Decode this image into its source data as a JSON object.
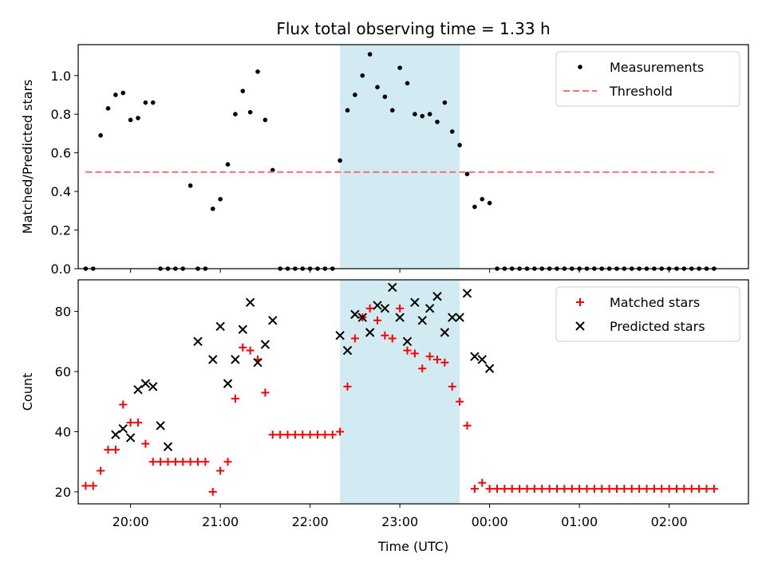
{
  "chart_data": [
    {
      "type": "scatter",
      "title": "Flux total observing time = 1.33 h",
      "xlabel": "",
      "ylabel": "Matched/Predicted stars",
      "xlim": [
        "19:25",
        "02:53"
      ],
      "ylim": [
        0,
        1.16
      ],
      "yticks": [
        "0.0",
        "0.2",
        "0.4",
        "0.6",
        "0.8",
        "1.0"
      ],
      "highlight_span": {
        "start": "22:20",
        "end": "23:40",
        "color": "#add8e6"
      },
      "legend": {
        "placement": "top-right",
        "entries": [
          "Measurements",
          "Threshold"
        ]
      },
      "series": [
        {
          "name": "Measurements",
          "style": "dot",
          "color": "#000000",
          "x": [
            "19:30",
            "19:35",
            "19:40",
            "19:45",
            "19:50",
            "19:55",
            "20:00",
            "20:05",
            "20:10",
            "20:15",
            "20:20",
            "20:25",
            "20:30",
            "20:35",
            "20:40",
            "20:45",
            "20:50",
            "20:55",
            "21:00",
            "21:05",
            "21:10",
            "21:15",
            "21:20",
            "21:25",
            "21:30",
            "21:35",
            "21:40",
            "21:45",
            "21:50",
            "21:55",
            "22:00",
            "22:05",
            "22:10",
            "22:15",
            "22:20",
            "22:25",
            "22:30",
            "22:35",
            "22:40",
            "22:45",
            "22:50",
            "22:55",
            "23:00",
            "23:05",
            "23:10",
            "23:15",
            "23:20",
            "23:25",
            "23:30",
            "23:35",
            "23:40",
            "23:45",
            "23:50",
            "23:55",
            "00:00",
            "00:05",
            "00:10",
            "00:15",
            "00:20",
            "00:25",
            "00:30",
            "00:35",
            "00:40",
            "00:45",
            "00:50",
            "00:55",
            "01:00",
            "01:05",
            "01:10",
            "01:15",
            "01:20",
            "01:25",
            "01:30",
            "01:35",
            "01:40",
            "01:45",
            "01:50",
            "01:55",
            "02:00",
            "02:05",
            "02:10",
            "02:15",
            "02:20",
            "02:25",
            "02:30"
          ],
          "y": [
            0,
            0,
            0.69,
            0.83,
            0.9,
            0.91,
            0.77,
            0.78,
            0.86,
            0.86,
            0,
            0,
            0,
            0,
            0.43,
            0,
            0,
            0.31,
            0.36,
            0.54,
            0.8,
            0.92,
            0.81,
            1.02,
            0.77,
            0.51,
            0,
            0,
            0,
            0,
            0,
            0,
            0,
            0,
            0.56,
            0.82,
            0.9,
            1.0,
            1.11,
            0.94,
            0.89,
            0.82,
            1.04,
            0.96,
            0.8,
            0.79,
            0.8,
            0.76,
            0.86,
            0.71,
            0.64,
            0.49,
            0.32,
            0.36,
            0.34,
            0,
            0,
            0,
            0,
            0,
            0,
            0,
            0,
            0,
            0,
            0,
            0,
            0,
            0,
            0,
            0,
            0,
            0,
            0,
            0,
            0,
            0,
            0,
            0,
            0,
            0,
            0,
            0,
            0,
            0
          ]
        },
        {
          "name": "Threshold",
          "style": "dashed-line",
          "color": "#ff6e6e",
          "x": [
            "19:30",
            "02:30"
          ],
          "y": [
            0.5,
            0.5
          ]
        }
      ]
    },
    {
      "type": "scatter",
      "title": "",
      "xlabel": "Time (UTC)",
      "ylabel": "Count",
      "xlim": [
        "19:25",
        "02:53"
      ],
      "ylim": [
        16,
        90.5
      ],
      "xticks": [
        "20:00",
        "21:00",
        "22:00",
        "23:00",
        "00:00",
        "01:00",
        "02:00"
      ],
      "yticks": [
        "20",
        "40",
        "60",
        "80"
      ],
      "highlight_span": {
        "start": "22:20",
        "end": "23:40",
        "color": "#add8e6"
      },
      "legend": {
        "placement": "top-right",
        "entries": [
          "Matched stars",
          "Predicted stars"
        ]
      },
      "series": [
        {
          "name": "Matched stars",
          "marker": "plus",
          "color": "#ff0000",
          "x": [
            "19:30",
            "19:35",
            "19:40",
            "19:45",
            "19:50",
            "19:55",
            "20:00",
            "20:05",
            "20:10",
            "20:15",
            "20:20",
            "20:25",
            "20:30",
            "20:35",
            "20:40",
            "20:45",
            "20:50",
            "20:55",
            "21:00",
            "21:05",
            "21:10",
            "21:15",
            "21:20",
            "21:25",
            "21:30",
            "21:35",
            "21:40",
            "21:45",
            "21:50",
            "21:55",
            "22:00",
            "22:05",
            "22:10",
            "22:15",
            "22:20",
            "22:25",
            "22:30",
            "22:35",
            "22:40",
            "22:45",
            "22:50",
            "22:55",
            "23:00",
            "23:05",
            "23:10",
            "23:15",
            "23:20",
            "23:25",
            "23:30",
            "23:35",
            "23:40",
            "23:45",
            "23:50",
            "23:55",
            "00:00",
            "00:05",
            "00:10",
            "00:15",
            "00:20",
            "00:25",
            "00:30",
            "00:35",
            "00:40",
            "00:45",
            "00:50",
            "00:55",
            "01:00",
            "01:05",
            "01:10",
            "01:15",
            "01:20",
            "01:25",
            "01:30",
            "01:35",
            "01:40",
            "01:45",
            "01:50",
            "01:55",
            "02:00",
            "02:05",
            "02:10",
            "02:15",
            "02:20",
            "02:25",
            "02:30"
          ],
          "y": [
            22,
            22,
            27,
            34,
            34,
            49,
            43,
            43,
            36,
            30,
            30,
            30,
            30,
            30,
            30,
            30,
            30,
            20,
            27,
            30,
            51,
            68,
            67,
            64,
            53,
            39,
            39,
            39,
            39,
            39,
            39,
            39,
            39,
            39,
            40,
            55,
            71,
            78,
            81,
            77,
            72,
            71,
            81,
            67,
            66,
            61,
            65,
            64,
            63,
            55,
            50,
            42,
            21,
            23,
            21,
            21,
            21,
            21,
            21,
            21,
            21,
            21,
            21,
            21,
            21,
            21,
            21,
            21,
            21,
            21,
            21,
            21,
            21,
            21,
            21,
            21,
            21,
            21,
            21,
            21,
            21,
            21,
            21,
            21,
            21
          ]
        },
        {
          "name": "Predicted stars",
          "marker": "x",
          "color": "#000000",
          "x": [
            "19:50",
            "19:55",
            "20:00",
            "20:05",
            "20:10",
            "20:15",
            "20:20",
            "20:25",
            "20:45",
            "20:55",
            "21:00",
            "21:05",
            "21:10",
            "21:15",
            "21:20",
            "21:25",
            "21:30",
            "21:35",
            "22:20",
            "22:25",
            "22:30",
            "22:35",
            "22:40",
            "22:45",
            "22:50",
            "22:55",
            "23:00",
            "23:05",
            "23:10",
            "23:15",
            "23:20",
            "23:25",
            "23:30",
            "23:35",
            "23:40",
            "23:45",
            "23:50",
            "23:55",
            "00:00"
          ],
          "y": [
            39,
            41,
            38,
            54,
            56,
            55,
            42,
            35,
            70,
            64,
            75,
            56,
            64,
            74,
            83,
            63,
            69,
            77,
            72,
            67,
            79,
            78,
            73,
            82,
            81,
            88,
            78,
            70,
            83,
            77,
            81,
            85,
            73,
            78,
            78,
            86,
            65,
            64,
            61
          ]
        }
      ]
    }
  ]
}
